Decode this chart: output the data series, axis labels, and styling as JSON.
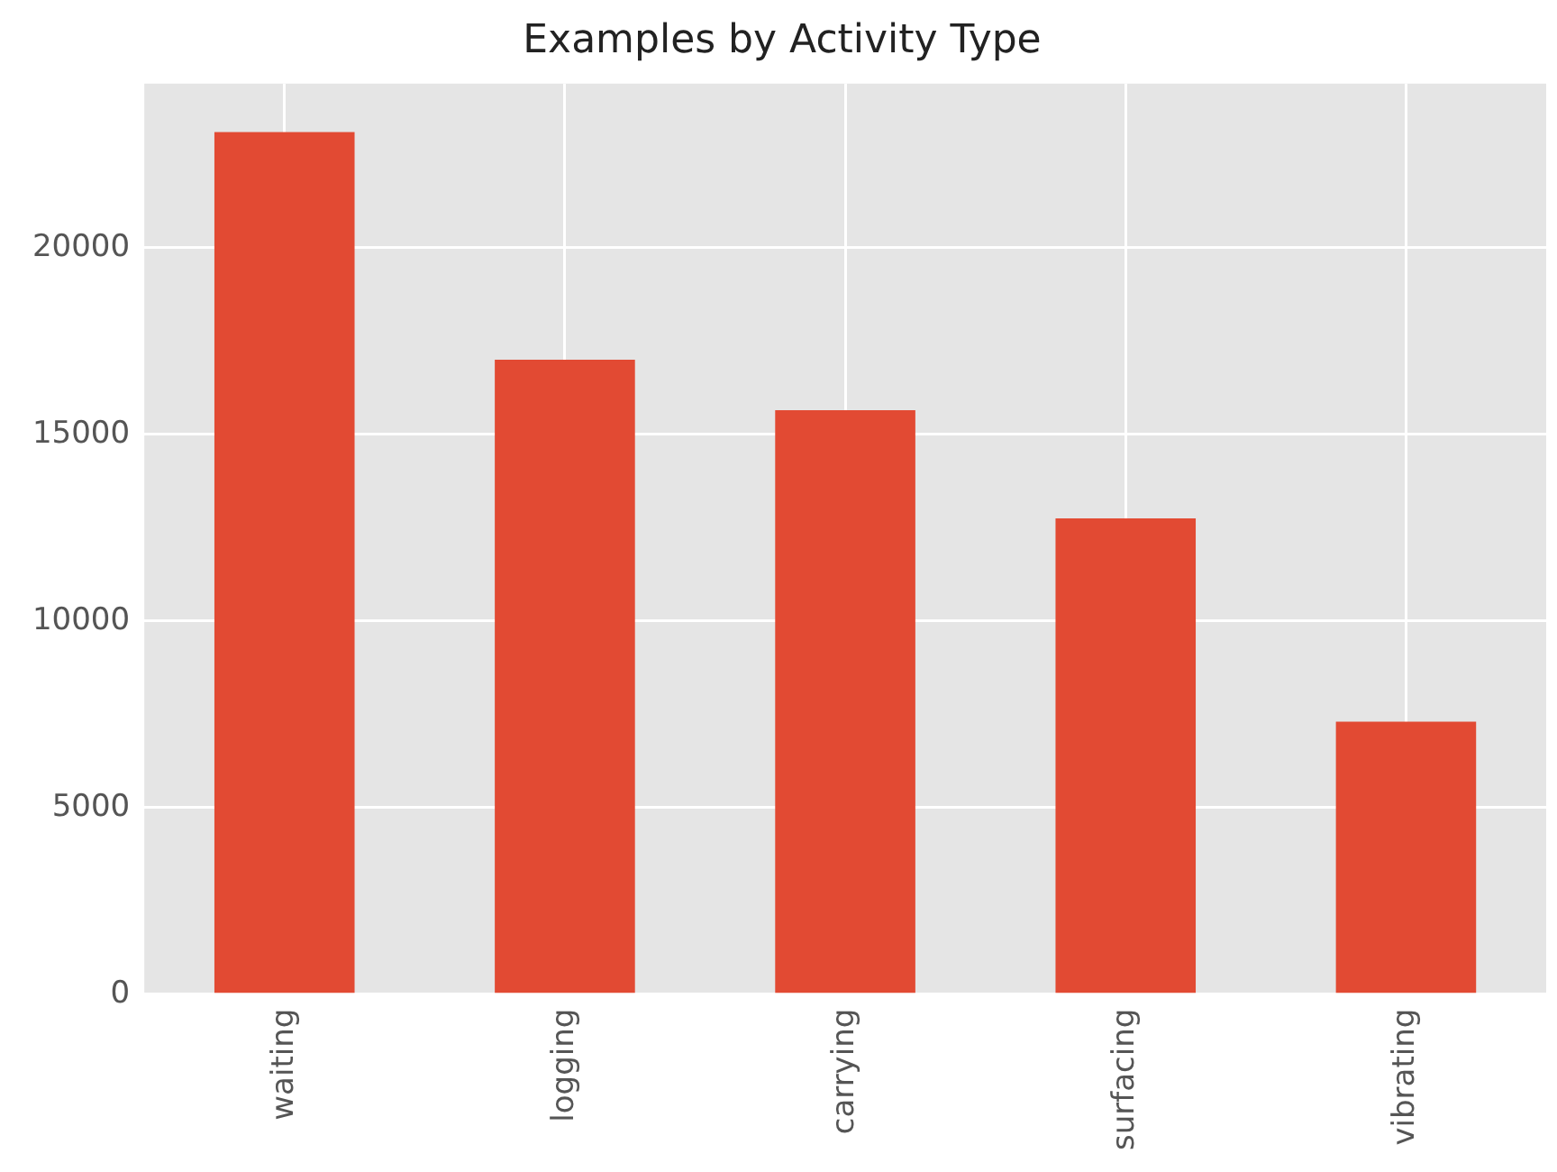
{
  "chart_data": {
    "type": "bar",
    "title": "Examples by Activity Type",
    "categories": [
      "waiting",
      "logging",
      "carrying",
      "surfacing",
      "vibrating"
    ],
    "values": [
      23100,
      17000,
      15650,
      12750,
      7300
    ],
    "color": "#e24a33",
    "ylim": [
      0,
      24400
    ],
    "yticks": [
      0,
      5000,
      10000,
      15000,
      20000
    ],
    "grid": true,
    "legend": false
  }
}
